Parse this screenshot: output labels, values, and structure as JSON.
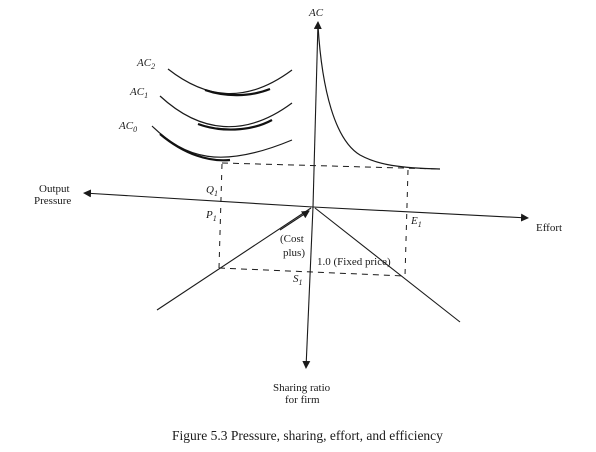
{
  "diagram": {
    "vertical_axis_label": "AC",
    "left_axis_label_line1": "Output",
    "left_axis_label_line2": "Pressure",
    "right_axis_label": "Effort",
    "bottom_axis_label_line1": "Sharing ratio",
    "bottom_axis_label_line2": "for firm",
    "curves": [
      {
        "base": "AC",
        "subscript": "2"
      },
      {
        "base": "AC",
        "subscript": "1"
      },
      {
        "base": "AC",
        "subscript": "0"
      }
    ],
    "points": {
      "q": {
        "base": "Q",
        "subscript": "1"
      },
      "p": {
        "base": "P",
        "subscript": "1"
      },
      "e": {
        "base": "E",
        "subscript": "1"
      },
      "s": {
        "base": "S",
        "subscript": "1"
      }
    },
    "cost_plus_line1": "(Cost",
    "cost_plus_line2": "plus)",
    "fixed_price_label": "1.0 (Fixed price)"
  },
  "caption": "Figure 5.3  Pressure, sharing, effort, and efficiency"
}
